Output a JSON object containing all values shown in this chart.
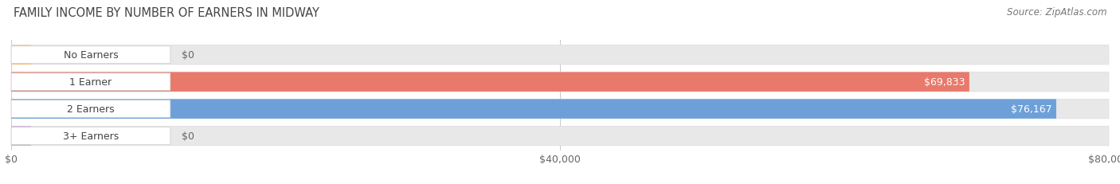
{
  "title": "FAMILY INCOME BY NUMBER OF EARNERS IN MIDWAY",
  "source": "Source: ZipAtlas.com",
  "categories": [
    "No Earners",
    "1 Earner",
    "2 Earners",
    "3+ Earners"
  ],
  "values": [
    0,
    69833,
    76167,
    0
  ],
  "bar_colors": [
    "#f5c18a",
    "#e8796b",
    "#6da0d8",
    "#c8a8d8"
  ],
  "bg_bar_color": "#e8e8e8",
  "label_bg_color": "#ffffff",
  "text_color": "#444444",
  "value_color_inside": "#ffffff",
  "value_color_outside": "#666666",
  "xlim": [
    0,
    80000
  ],
  "xticks": [
    0,
    40000,
    80000
  ],
  "xticklabels": [
    "$0",
    "$40,000",
    "$80,000"
  ],
  "fig_bg_color": "#ffffff",
  "title_color": "#444444",
  "source_color": "#777777",
  "figsize": [
    14.06,
    2.32
  ],
  "dpi": 100
}
